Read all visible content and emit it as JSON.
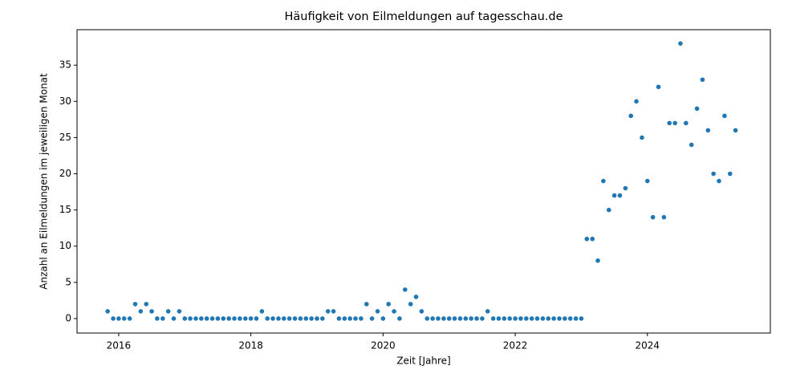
{
  "chart_data": {
    "type": "scatter",
    "title": "Häufigkeit von Eilmeldungen auf tagesschau.de",
    "xlabel": "Zeit [Jahre]",
    "ylabel": "Anzahl an Eilmeldungen im jeweiligen Monat",
    "color": "#1f77b4",
    "x": [
      2015.833,
      2015.917,
      2016,
      2016.083,
      2016.167,
      2016.25,
      2016.333,
      2016.417,
      2016.5,
      2016.583,
      2016.667,
      2016.75,
      2016.833,
      2016.917,
      2017,
      2017.083,
      2017.167,
      2017.25,
      2017.333,
      2017.417,
      2017.5,
      2017.583,
      2017.667,
      2017.75,
      2017.833,
      2017.917,
      2018,
      2018.083,
      2018.167,
      2018.25,
      2018.333,
      2018.417,
      2018.5,
      2018.583,
      2018.667,
      2018.75,
      2018.833,
      2018.917,
      2019,
      2019.083,
      2019.167,
      2019.25,
      2019.333,
      2019.417,
      2019.5,
      2019.583,
      2019.667,
      2019.75,
      2019.833,
      2019.917,
      2020,
      2020.083,
      2020.167,
      2020.25,
      2020.333,
      2020.417,
      2020.5,
      2020.583,
      2020.667,
      2020.75,
      2020.833,
      2020.917,
      2021,
      2021.083,
      2021.167,
      2021.25,
      2021.333,
      2021.417,
      2021.5,
      2021.583,
      2021.667,
      2021.75,
      2021.833,
      2021.917,
      2022,
      2022.083,
      2022.167,
      2022.25,
      2022.333,
      2022.417,
      2022.5,
      2022.583,
      2022.667,
      2022.75,
      2022.833,
      2022.917,
      2023,
      2023.083,
      2023.167,
      2023.25,
      2023.333,
      2023.417,
      2023.5,
      2023.583,
      2023.667,
      2023.75,
      2023.833,
      2023.917,
      2024,
      2024.083,
      2024.167,
      2024.25,
      2024.333,
      2024.417,
      2024.5,
      2024.583,
      2024.667,
      2024.75,
      2024.833,
      2024.917,
      2025,
      2025.083,
      2025.167,
      2025.25,
      2025.333
    ],
    "values": [
      1,
      0,
      0,
      0,
      0,
      2,
      1,
      2,
      1,
      0,
      0,
      1,
      0,
      1,
      0,
      0,
      0,
      0,
      0,
      0,
      0,
      0,
      0,
      0,
      0,
      0,
      0,
      0,
      1,
      0,
      0,
      0,
      0,
      0,
      0,
      0,
      0,
      0,
      0,
      0,
      1,
      1,
      0,
      0,
      0,
      0,
      0,
      2,
      0,
      1,
      0,
      2,
      1,
      0,
      4,
      2,
      3,
      1,
      0,
      0,
      0,
      0,
      0,
      0,
      0,
      0,
      0,
      0,
      0,
      1,
      0,
      0,
      0,
      0,
      0,
      0,
      0,
      0,
      0,
      0,
      0,
      0,
      0,
      0,
      0,
      0,
      0,
      11,
      11,
      8,
      19,
      15,
      17,
      17,
      18,
      28,
      30,
      25,
      19,
      14,
      32,
      14,
      27,
      27,
      38,
      27,
      24,
      29,
      33,
      26,
      20,
      19,
      28,
      20,
      26
    ],
    "xlim": [
      2015.37,
      2025.86
    ],
    "xticks": [
      2016,
      2018,
      2020,
      2022,
      2024
    ],
    "ylim": [
      -2,
      39.9
    ],
    "yticks": [
      0,
      5,
      10,
      15,
      20,
      25,
      30,
      35
    ]
  }
}
